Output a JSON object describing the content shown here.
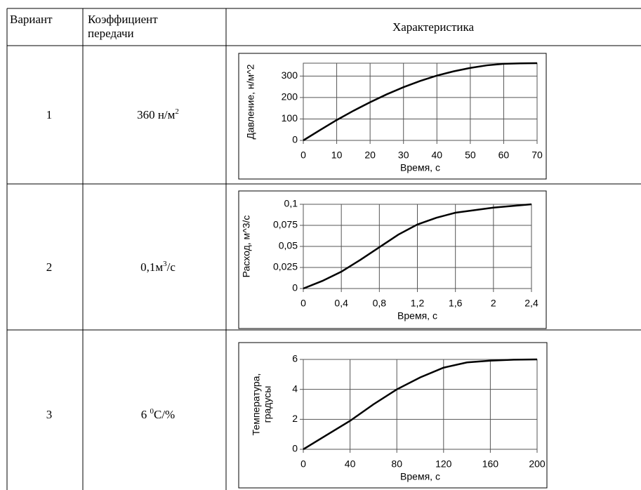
{
  "header": {
    "variant": "Вариант",
    "coefficient": [
      "Коэффициент",
      "передачи"
    ],
    "characteristic": "Характеристика"
  },
  "rows": [
    {
      "variant": "1",
      "coefficient": [
        {
          "text": "360 н/м"
        },
        {
          "sup": "2"
        }
      ],
      "chart_data": {
        "type": "line",
        "ylabel": [
          "Давление, н/м^2"
        ],
        "xlabel": "Время, с",
        "x": [
          0,
          5,
          10,
          15,
          20,
          25,
          30,
          35,
          40,
          45,
          50,
          55,
          60,
          65,
          70
        ],
        "series": [
          {
            "color": "#000000",
            "values": [
              0,
              48,
              95,
              138,
              178,
              215,
              248,
              277,
              302,
              322,
              338,
              350,
              357,
              359,
              360
            ]
          }
        ],
        "xlim": [
          0,
          70
        ],
        "ylim": [
          0,
          360
        ],
        "xticks": [
          0,
          10,
          20,
          30,
          40,
          50,
          60,
          70
        ],
        "yticks": [
          0,
          100,
          200,
          300
        ],
        "grid": true
      }
    },
    {
      "variant": "2",
      "coefficient": [
        {
          "text": "0,1м"
        },
        {
          "sup": "3"
        },
        {
          "text": "/с"
        }
      ],
      "chart_data": {
        "type": "line",
        "ylabel": [
          "Расход, м^3/с"
        ],
        "xlabel": "Время, с",
        "x": [
          0,
          0.2,
          0.4,
          0.6,
          0.8,
          1.0,
          1.2,
          1.4,
          1.6,
          1.8,
          2.0,
          2.2,
          2.4
        ],
        "series": [
          {
            "color": "#000000",
            "values": [
              0,
              0.009,
              0.02,
              0.034,
              0.049,
              0.064,
              0.076,
              0.084,
              0.09,
              0.093,
              0.096,
              0.098,
              0.1
            ]
          }
        ],
        "xlim": [
          0,
          2.4
        ],
        "ylim": [
          0,
          0.1
        ],
        "xticks": [
          0,
          {
            "value": 0.4,
            "label": "0,4"
          },
          {
            "value": 0.8,
            "label": "0,8"
          },
          {
            "value": 1.2,
            "label": "1,2"
          },
          {
            "value": 1.6,
            "label": "1,6"
          },
          2,
          {
            "value": 2.4,
            "label": "2,4"
          }
        ],
        "yticks": [
          0,
          {
            "value": 0.025,
            "label": "0,025"
          },
          {
            "value": 0.05,
            "label": "0,05"
          },
          {
            "value": 0.075,
            "label": "0,075"
          },
          {
            "value": 0.1,
            "label": "0,1"
          }
        ],
        "grid": true
      }
    },
    {
      "variant": "3",
      "coefficient": [
        {
          "text": "6 "
        },
        {
          "sup": "0"
        },
        {
          "text": "C/%"
        }
      ],
      "chart_data": {
        "type": "line",
        "ylabel": [
          "Температура,",
          "градусы"
        ],
        "xlabel": "Время, с",
        "x": [
          0,
          20,
          40,
          60,
          80,
          100,
          120,
          140,
          160,
          180,
          200
        ],
        "series": [
          {
            "color": "#000000",
            "values": [
              0,
              0.95,
              1.9,
              3.0,
              4.0,
              4.8,
              5.45,
              5.8,
              5.92,
              5.98,
              6
            ]
          }
        ],
        "xlim": [
          0,
          200
        ],
        "ylim": [
          0,
          6
        ],
        "xticks": [
          0,
          40,
          80,
          120,
          160,
          200
        ],
        "yticks": [
          0,
          2,
          4,
          6
        ],
        "grid": true
      }
    }
  ]
}
